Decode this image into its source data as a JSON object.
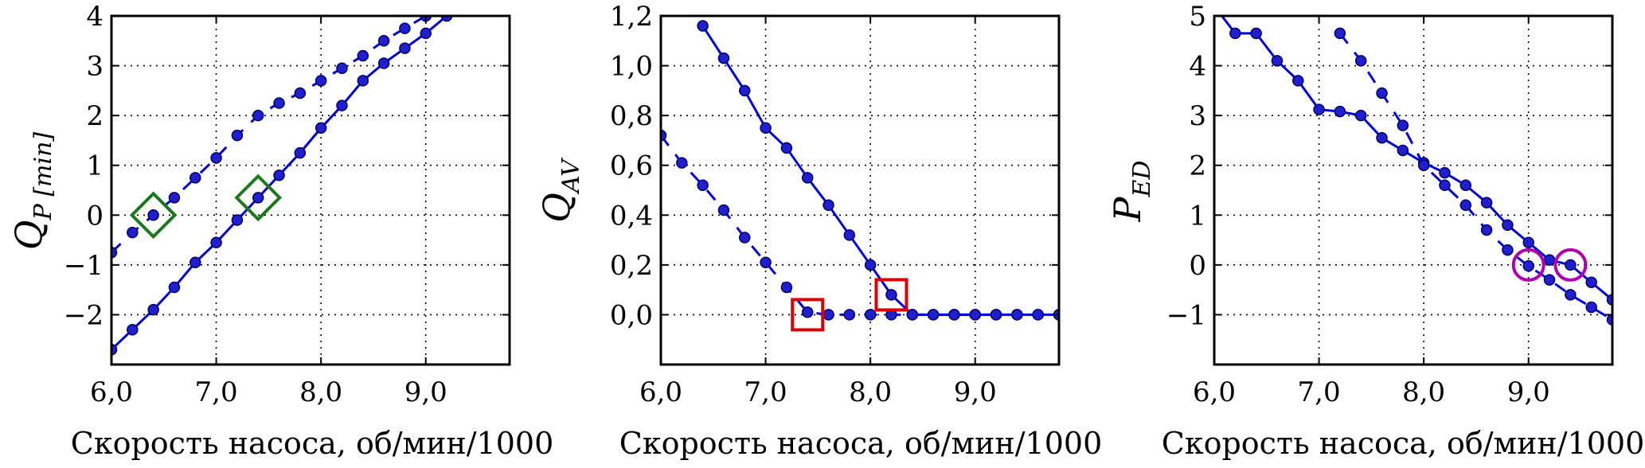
{
  "chart_data": [
    {
      "type": "line",
      "ylabel": "Q",
      "ylabel_sub": "P [min]",
      "xlabel": "Скорость насоса, об/мин/1000",
      "xlim": [
        6.0,
        9.8
      ],
      "ylim": [
        -3.0,
        4.0
      ],
      "xticks": [
        6.0,
        7.0,
        8.0,
        9.0
      ],
      "xtick_labels": [
        "6,0",
        "7,0",
        "8,0",
        "9,0"
      ],
      "yticks": [
        -2,
        -1,
        0,
        1,
        2,
        3,
        4
      ],
      "ytick_labels": [
        "−2",
        "−1",
        "0",
        "1",
        "2",
        "3",
        "4"
      ],
      "grid": true,
      "series": [
        {
          "style": "dashed",
          "x": [
            6.0,
            6.2,
            6.4,
            6.6,
            6.8,
            7.0,
            7.2,
            7.4,
            7.6,
            7.8,
            8.0,
            8.2,
            8.4,
            8.6,
            8.8,
            9.0
          ],
          "y": [
            -0.75,
            -0.35,
            0.0,
            0.35,
            0.75,
            1.15,
            1.6,
            2.0,
            2.25,
            2.45,
            2.7,
            2.95,
            3.2,
            3.5,
            3.75,
            4.0
          ]
        },
        {
          "style": "solid",
          "x": [
            6.0,
            6.2,
            6.4,
            6.6,
            6.8,
            7.0,
            7.2,
            7.4,
            7.6,
            7.8,
            8.0,
            8.2,
            8.4,
            8.6,
            8.8,
            9.0,
            9.2
          ],
          "y": [
            -2.7,
            -2.3,
            -1.9,
            -1.45,
            -0.95,
            -0.55,
            -0.1,
            0.35,
            0.8,
            1.25,
            1.75,
            2.2,
            2.7,
            3.05,
            3.35,
            3.65,
            4.0
          ]
        }
      ],
      "markers": [
        {
          "shape": "diamond",
          "color": "#1a7a1a",
          "x": 6.4,
          "y": 0.0
        },
        {
          "shape": "diamond",
          "color": "#1a7a1a",
          "x": 7.4,
          "y": 0.35
        }
      ]
    },
    {
      "type": "line",
      "ylabel": "Q",
      "ylabel_sub": "AV",
      "xlabel": "Скорость насоса, об/мин/1000",
      "xlim": [
        6.0,
        9.8
      ],
      "ylim": [
        -0.2,
        1.2
      ],
      "xticks": [
        6.0,
        7.0,
        8.0,
        9.0
      ],
      "xtick_labels": [
        "6,0",
        "7,0",
        "8,0",
        "9,0"
      ],
      "yticks": [
        0.0,
        0.2,
        0.4,
        0.6,
        0.8,
        1.0,
        1.2
      ],
      "ytick_labels": [
        "0,0",
        "0,2",
        "0,4",
        "0,6",
        "0,8",
        "1,0",
        "1,2"
      ],
      "grid": true,
      "series": [
        {
          "style": "dashed",
          "x": [
            6.0,
            6.2,
            6.4,
            6.6,
            6.8,
            7.0,
            7.2,
            7.4,
            7.6,
            7.8,
            8.0,
            8.2,
            8.4,
            8.6,
            8.8,
            9.0,
            9.2,
            9.4,
            9.6,
            9.8
          ],
          "y": [
            0.72,
            0.61,
            0.52,
            0.42,
            0.31,
            0.21,
            0.11,
            0.01,
            0.0,
            0.0,
            0.0,
            0.0,
            0.0,
            0.0,
            0.0,
            0.0,
            0.0,
            0.0,
            0.0,
            0.0
          ]
        },
        {
          "style": "solid",
          "x": [
            6.4,
            6.6,
            6.8,
            7.0,
            7.2,
            7.4,
            7.6,
            7.8,
            8.0,
            8.2,
            8.4,
            8.6,
            8.8,
            9.0,
            9.2,
            9.4,
            9.6,
            9.8
          ],
          "y": [
            1.16,
            1.03,
            0.9,
            0.75,
            0.67,
            0.55,
            0.44,
            0.32,
            0.2,
            0.08,
            0.0,
            0.0,
            0.0,
            0.0,
            0.0,
            0.0,
            0.0,
            0.0
          ]
        }
      ],
      "markers": [
        {
          "shape": "square",
          "color": "#e00000",
          "x": 7.4,
          "y": 0.0
        },
        {
          "shape": "square",
          "color": "#e00000",
          "x": 8.2,
          "y": 0.08
        }
      ]
    },
    {
      "type": "line",
      "ylabel": "P",
      "ylabel_sub": "ED",
      "xlabel": "Скорость насоса, об/мин/1000",
      "xlim": [
        6.0,
        9.8
      ],
      "ylim": [
        -2.0,
        5.0
      ],
      "xticks": [
        6.0,
        7.0,
        8.0,
        9.0
      ],
      "xtick_labels": [
        "6,0",
        "7,0",
        "8,0",
        "9,0"
      ],
      "yticks": [
        -1,
        0,
        1,
        2,
        3,
        4,
        5
      ],
      "ytick_labels": [
        "−1",
        "0",
        "1",
        "2",
        "3",
        "4",
        "5"
      ],
      "grid": true,
      "series": [
        {
          "style": "solid",
          "x": [
            6.0,
            6.2,
            6.4,
            6.6,
            6.8,
            7.0,
            7.2,
            7.4,
            7.6,
            7.8,
            8.0,
            8.2,
            8.4,
            8.6,
            8.8,
            9.0,
            9.2,
            9.4,
            9.6,
            9.8
          ],
          "y": [
            5.2,
            4.65,
            4.65,
            4.1,
            3.7,
            3.12,
            3.08,
            3.0,
            2.55,
            2.3,
            2.05,
            1.85,
            1.6,
            1.25,
            0.8,
            0.45,
            0.1,
            0.0,
            -0.35,
            -0.7
          ]
        },
        {
          "style": "dashed",
          "x": [
            7.2,
            7.4,
            7.6,
            7.8,
            8.0,
            8.2,
            8.4,
            8.6,
            8.8,
            9.0,
            9.2,
            9.4,
            9.6,
            9.8
          ],
          "y": [
            4.65,
            4.1,
            3.45,
            2.8,
            2.0,
            1.6,
            1.2,
            0.7,
            0.3,
            -0.02,
            -0.3,
            -0.6,
            -0.85,
            -1.1
          ]
        }
      ],
      "markers": [
        {
          "shape": "circle",
          "color": "#b000b0",
          "x": 9.0,
          "y": 0.0
        },
        {
          "shape": "circle",
          "color": "#b000b0",
          "x": 9.4,
          "y": 0.0
        }
      ]
    }
  ]
}
